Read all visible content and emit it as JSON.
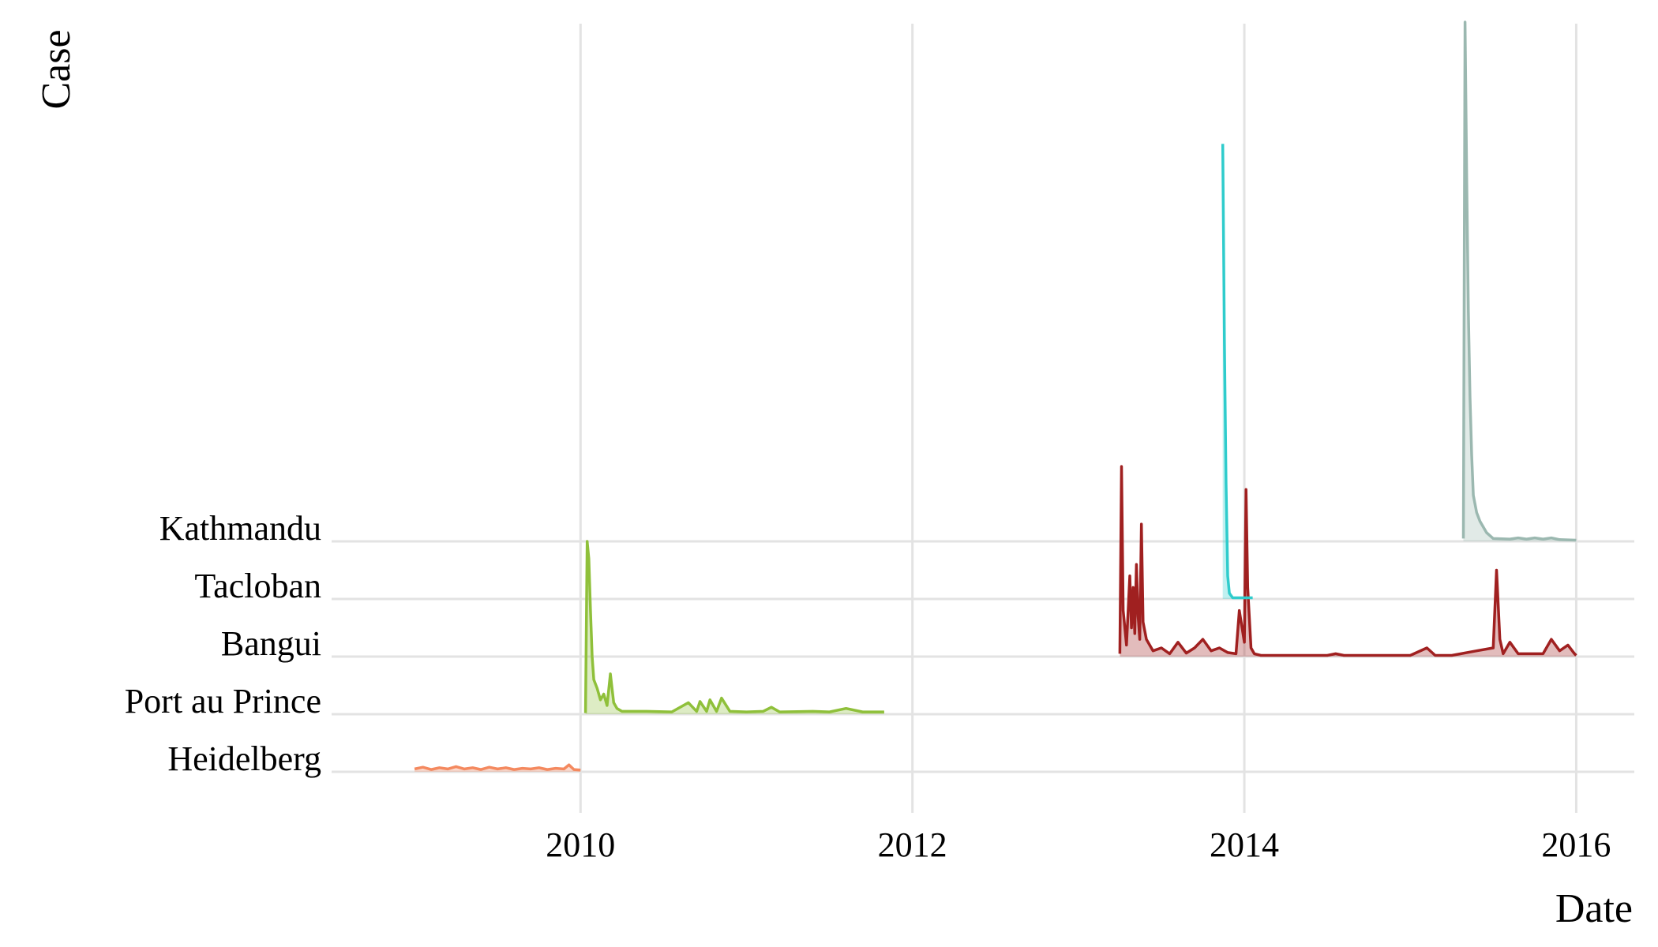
{
  "chart_data": {
    "type": "area",
    "subtype": "ridgeline",
    "title": "",
    "xlabel": "Date",
    "ylabel": "Case",
    "xlim": [
      2008.5,
      2016.35
    ],
    "x_ticks": [
      2010,
      2012,
      2014,
      2016
    ],
    "x_tick_labels": [
      "2010",
      "2012",
      "2014",
      "2016"
    ],
    "grid": true,
    "legend": "none",
    "categories": [
      "Heidelberg",
      "Port au Prince",
      "Bangui",
      "Tacloban",
      "Kathmandu"
    ],
    "series": [
      {
        "name": "Heidelberg",
        "color": "#F4895F",
        "points": [
          [
            2009.0,
            0.05
          ],
          [
            2009.05,
            0.08
          ],
          [
            2009.1,
            0.04
          ],
          [
            2009.15,
            0.07
          ],
          [
            2009.2,
            0.05
          ],
          [
            2009.25,
            0.09
          ],
          [
            2009.3,
            0.05
          ],
          [
            2009.35,
            0.07
          ],
          [
            2009.4,
            0.04
          ],
          [
            2009.45,
            0.08
          ],
          [
            2009.5,
            0.05
          ],
          [
            2009.55,
            0.07
          ],
          [
            2009.6,
            0.04
          ],
          [
            2009.65,
            0.06
          ],
          [
            2009.7,
            0.05
          ],
          [
            2009.75,
            0.07
          ],
          [
            2009.8,
            0.04
          ],
          [
            2009.85,
            0.06
          ],
          [
            2009.9,
            0.05
          ],
          [
            2009.93,
            0.12
          ],
          [
            2009.96,
            0.04
          ],
          [
            2010.0,
            0.03
          ]
        ]
      },
      {
        "name": "Port au Prince",
        "color": "#8FC03A",
        "points": [
          [
            2010.03,
            0.02
          ],
          [
            2010.04,
            3.0
          ],
          [
            2010.05,
            2.7
          ],
          [
            2010.06,
            1.8
          ],
          [
            2010.07,
            1.0
          ],
          [
            2010.08,
            0.6
          ],
          [
            2010.1,
            0.45
          ],
          [
            2010.12,
            0.25
          ],
          [
            2010.14,
            0.35
          ],
          [
            2010.16,
            0.15
          ],
          [
            2010.18,
            0.7
          ],
          [
            2010.2,
            0.2
          ],
          [
            2010.22,
            0.1
          ],
          [
            2010.25,
            0.05
          ],
          [
            2010.4,
            0.05
          ],
          [
            2010.55,
            0.04
          ],
          [
            2010.65,
            0.2
          ],
          [
            2010.7,
            0.05
          ],
          [
            2010.72,
            0.22
          ],
          [
            2010.76,
            0.05
          ],
          [
            2010.78,
            0.25
          ],
          [
            2010.82,
            0.05
          ],
          [
            2010.85,
            0.28
          ],
          [
            2010.9,
            0.05
          ],
          [
            2011.0,
            0.04
          ],
          [
            2011.1,
            0.05
          ],
          [
            2011.15,
            0.12
          ],
          [
            2011.2,
            0.04
          ],
          [
            2011.4,
            0.05
          ],
          [
            2011.5,
            0.04
          ],
          [
            2011.6,
            0.1
          ],
          [
            2011.7,
            0.04
          ],
          [
            2011.83,
            0.04
          ]
        ]
      },
      {
        "name": "Bangui",
        "color": "#A02020",
        "points": [
          [
            2013.25,
            0.05
          ],
          [
            2013.26,
            3.3
          ],
          [
            2013.27,
            0.8
          ],
          [
            2013.29,
            0.2
          ],
          [
            2013.31,
            1.4
          ],
          [
            2013.32,
            0.5
          ],
          [
            2013.33,
            1.2
          ],
          [
            2013.34,
            0.4
          ],
          [
            2013.35,
            1.6
          ],
          [
            2013.36,
            0.7
          ],
          [
            2013.37,
            0.3
          ],
          [
            2013.38,
            2.3
          ],
          [
            2013.39,
            0.6
          ],
          [
            2013.41,
            0.3
          ],
          [
            2013.45,
            0.1
          ],
          [
            2013.5,
            0.15
          ],
          [
            2013.55,
            0.05
          ],
          [
            2013.6,
            0.25
          ],
          [
            2013.65,
            0.06
          ],
          [
            2013.7,
            0.15
          ],
          [
            2013.75,
            0.3
          ],
          [
            2013.8,
            0.1
          ],
          [
            2013.85,
            0.15
          ],
          [
            2013.9,
            0.07
          ],
          [
            2013.95,
            0.05
          ],
          [
            2013.97,
            0.8
          ],
          [
            2014.0,
            0.25
          ],
          [
            2014.01,
            2.9
          ],
          [
            2014.02,
            1.2
          ],
          [
            2014.04,
            0.15
          ],
          [
            2014.06,
            0.05
          ],
          [
            2014.1,
            0.02
          ],
          [
            2014.5,
            0.02
          ],
          [
            2014.55,
            0.05
          ],
          [
            2014.6,
            0.02
          ],
          [
            2015.0,
            0.02
          ],
          [
            2015.1,
            0.15
          ],
          [
            2015.15,
            0.02
          ],
          [
            2015.25,
            0.02
          ],
          [
            2015.4,
            0.1
          ],
          [
            2015.5,
            0.15
          ],
          [
            2015.52,
            1.5
          ],
          [
            2015.54,
            0.3
          ],
          [
            2015.56,
            0.05
          ],
          [
            2015.6,
            0.25
          ],
          [
            2015.65,
            0.05
          ],
          [
            2015.8,
            0.05
          ],
          [
            2015.85,
            0.3
          ],
          [
            2015.9,
            0.1
          ],
          [
            2015.95,
            0.2
          ],
          [
            2015.99,
            0.05
          ],
          [
            2016.0,
            0.02
          ]
        ]
      },
      {
        "name": "Tacloban",
        "color": "#2FCCCC",
        "points": [
          [
            2013.87,
            7.9
          ],
          [
            2013.88,
            4.5
          ],
          [
            2013.89,
            2.0
          ],
          [
            2013.9,
            0.4
          ],
          [
            2013.91,
            0.1
          ],
          [
            2013.93,
            0.02
          ],
          [
            2014.05,
            0.02
          ]
        ]
      },
      {
        "name": "Kathmandu",
        "color": "#9BB8B0",
        "points": [
          [
            2015.32,
            0.05
          ],
          [
            2015.33,
            9.2
          ],
          [
            2015.34,
            6.3
          ],
          [
            2015.35,
            4.0
          ],
          [
            2015.36,
            2.5
          ],
          [
            2015.37,
            1.5
          ],
          [
            2015.38,
            0.8
          ],
          [
            2015.4,
            0.5
          ],
          [
            2015.42,
            0.35
          ],
          [
            2015.44,
            0.25
          ],
          [
            2015.46,
            0.15
          ],
          [
            2015.48,
            0.1
          ],
          [
            2015.5,
            0.05
          ],
          [
            2015.6,
            0.04
          ],
          [
            2015.65,
            0.06
          ],
          [
            2015.7,
            0.04
          ],
          [
            2015.75,
            0.06
          ],
          [
            2015.8,
            0.04
          ],
          [
            2015.85,
            0.06
          ],
          [
            2015.9,
            0.03
          ],
          [
            2016.0,
            0.02
          ]
        ]
      }
    ]
  }
}
